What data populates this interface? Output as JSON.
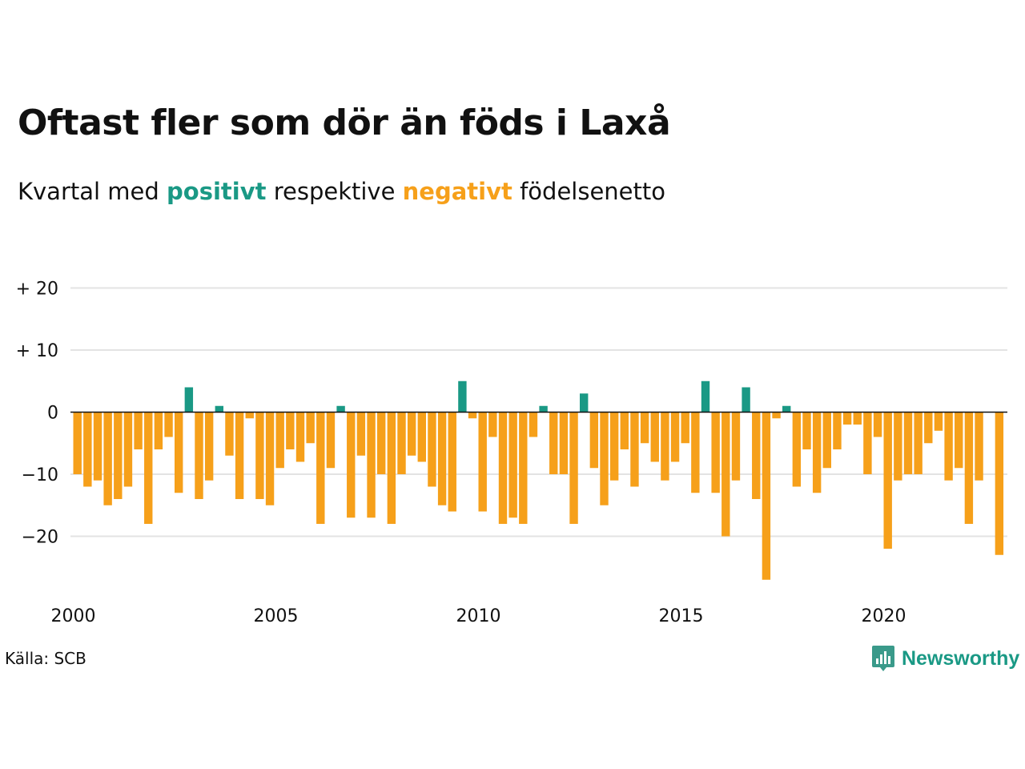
{
  "title": "Oftast fler som dör än föds i Laxå",
  "subtitle": {
    "before": "Kvartal med",
    "positive": "positivt",
    "middle": "respektive",
    "negative": "negativt",
    "after": "födelsenetto"
  },
  "colors": {
    "positive": "#1a9985",
    "negative": "#f6a01a",
    "grid": "#e3e3e3",
    "text": "#111111"
  },
  "source": "Källa: SCB",
  "brand": {
    "name": "Newsworthy",
    "icon": "newsworthy-chart-icon"
  },
  "chart_data": {
    "type": "bar",
    "xlabel": "",
    "ylabel": "",
    "ylim": [
      -29,
      21
    ],
    "x_start": 2000,
    "x_ticks": [
      {
        "year": 2000,
        "label": "2000"
      },
      {
        "year": 2005,
        "label": "2005"
      },
      {
        "year": 2010,
        "label": "2010"
      },
      {
        "year": 2015,
        "label": "2015"
      },
      {
        "year": 2020,
        "label": "2020"
      }
    ],
    "y_ticks": [
      {
        "value": 20,
        "label": "+ 20"
      },
      {
        "value": 10,
        "label": "+ 10"
      },
      {
        "value": 0,
        "label": "0"
      },
      {
        "value": -10,
        "label": "−10"
      },
      {
        "value": -20,
        "label": "−20"
      }
    ],
    "grid": true,
    "values": [
      -10,
      -12,
      -11,
      -15,
      -14,
      -12,
      -6,
      -18,
      -6,
      -4,
      -13,
      4,
      -14,
      -11,
      1,
      -7,
      -14,
      -1,
      -14,
      -15,
      -9,
      -6,
      -8,
      -5,
      -18,
      -9,
      1,
      -17,
      -7,
      -17,
      -10,
      -18,
      -10,
      -7,
      -8,
      -12,
      -15,
      -16,
      5,
      -1,
      -16,
      -4,
      -18,
      -17,
      -18,
      -4,
      1,
      -10,
      -10,
      -18,
      3,
      -9,
      -15,
      -11,
      -6,
      -12,
      -5,
      -8,
      -11,
      -8,
      -5,
      -13,
      5,
      -13,
      -20,
      -11,
      4,
      -14,
      -27,
      -1,
      1,
      -12,
      -6,
      -13,
      -9,
      -6,
      -2,
      -2,
      -10,
      -4,
      -22,
      -11,
      -10,
      -10,
      -5,
      -3,
      -11,
      -9,
      -18,
      -11,
      0,
      -23
    ]
  }
}
